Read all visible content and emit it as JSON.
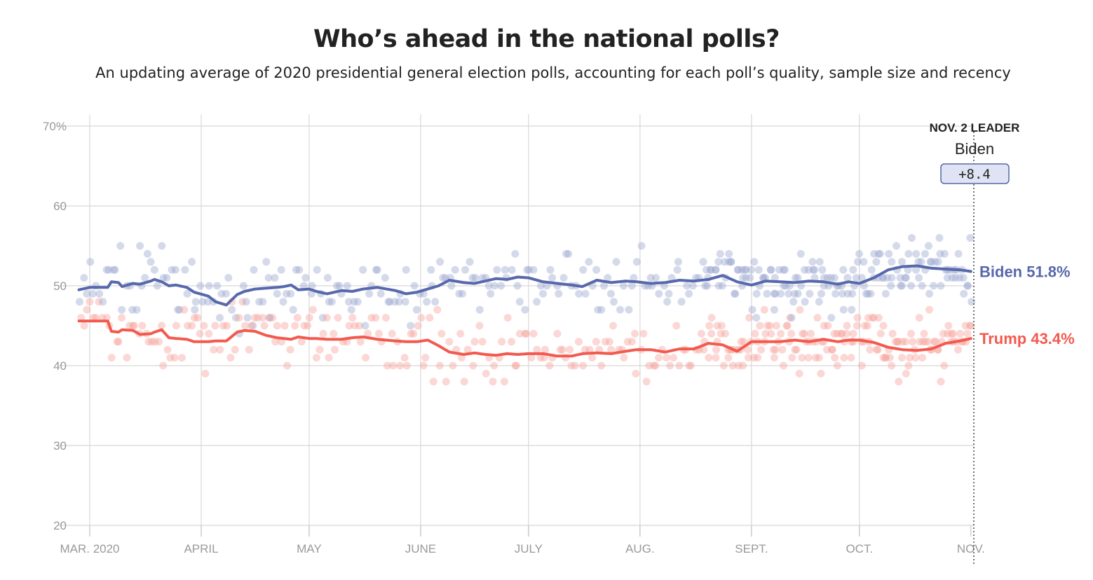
{
  "title": "Who’s ahead in the national polls?",
  "subtitle": "An updating average of 2020 presidential general election polls, accounting for each poll’s quality, sample size and recency",
  "colors": {
    "biden": "#5768ac",
    "trump": "#f25a4f",
    "biden_dot": "#9ba6cf",
    "trump_dot": "#f6a29b",
    "grid": "#d8d8d8",
    "axis_text": "#999999"
  },
  "leader": {
    "title": "NOV. 2 LEADER",
    "name": "Biden",
    "margin": "+8.4"
  },
  "chart_data": {
    "type": "line",
    "x_unit": "days since Mar. 1, 2020",
    "xlim": [
      -4,
      252
    ],
    "ylim": [
      20,
      70
    ],
    "yticks": [
      {
        "value": 70,
        "label": "70%"
      },
      {
        "value": 60,
        "label": "60"
      },
      {
        "value": 50,
        "label": "50"
      },
      {
        "value": 40,
        "label": "40"
      },
      {
        "value": 30,
        "label": "30"
      },
      {
        "value": 20,
        "label": "20"
      }
    ],
    "xticks": [
      {
        "value": 0,
        "label": "MAR. 2020"
      },
      {
        "value": 31,
        "label": "APRIL"
      },
      {
        "value": 61,
        "label": "MAY"
      },
      {
        "value": 92,
        "label": "JUNE"
      },
      {
        "value": 122,
        "label": "JULY"
      },
      {
        "value": 153,
        "label": "AUG."
      },
      {
        "value": 184,
        "label": "SEPT."
      },
      {
        "value": 214,
        "label": "OCT."
      },
      {
        "value": 245,
        "label": "NOV."
      }
    ],
    "series": [
      {
        "name": "Biden",
        "end_label": "Biden 51.8%",
        "x": [
          -3,
          0,
          5,
          6,
          8,
          9,
          12,
          14,
          17,
          18,
          20,
          22,
          24,
          27,
          29,
          33,
          35,
          38,
          41,
          43,
          46,
          49,
          52,
          54,
          56,
          58,
          61,
          63,
          66,
          70,
          73,
          76,
          80,
          85,
          88,
          91,
          94,
          97,
          100,
          104,
          107,
          110,
          113,
          116,
          119,
          122,
          126,
          130,
          134,
          137,
          141,
          145,
          149,
          152,
          156,
          160,
          164,
          168,
          172,
          176,
          180,
          184,
          188,
          192,
          196,
          200,
          204,
          208,
          211,
          214,
          218,
          222,
          226,
          230,
          234,
          238,
          242,
          245
        ],
        "values": [
          49.5,
          49.8,
          49.8,
          50.5,
          50.4,
          49.9,
          50.3,
          50.2,
          50.6,
          50.8,
          50.5,
          50.0,
          50.1,
          49.8,
          49.2,
          48.7,
          48.0,
          47.6,
          48.9,
          49.3,
          49.6,
          49.7,
          49.8,
          49.9,
          50.1,
          49.5,
          49.6,
          49.3,
          49.0,
          49.4,
          49.3,
          49.6,
          49.8,
          49.4,
          49.0,
          49.2,
          49.6,
          50.0,
          50.7,
          50.4,
          50.3,
          50.6,
          50.9,
          50.8,
          51.1,
          51.0,
          50.5,
          50.3,
          50.1,
          49.9,
          50.7,
          50.4,
          50.6,
          50.5,
          50.3,
          50.4,
          50.7,
          50.6,
          50.8,
          51.3,
          50.5,
          50.1,
          50.6,
          50.5,
          50.4,
          50.6,
          50.5,
          50.2,
          50.5,
          50.3,
          51.0,
          52.0,
          52.4,
          52.5,
          52.2,
          52.1,
          52.0,
          51.8
        ]
      },
      {
        "name": "Trump",
        "end_label": "Trump 43.4%",
        "x": [
          -3,
          0,
          5,
          6,
          8,
          9,
          12,
          14,
          17,
          18,
          20,
          22,
          24,
          27,
          29,
          33,
          35,
          38,
          41,
          43,
          46,
          49,
          52,
          54,
          56,
          58,
          61,
          63,
          66,
          70,
          73,
          76,
          80,
          85,
          88,
          91,
          94,
          97,
          100,
          104,
          107,
          110,
          113,
          116,
          119,
          122,
          126,
          130,
          134,
          137,
          141,
          145,
          149,
          152,
          156,
          160,
          164,
          168,
          172,
          176,
          180,
          184,
          188,
          192,
          196,
          200,
          204,
          208,
          211,
          214,
          218,
          222,
          226,
          230,
          234,
          238,
          242,
          245
        ],
        "values": [
          45.6,
          45.6,
          45.6,
          44.3,
          44.2,
          44.5,
          44.4,
          43.9,
          44.0,
          44.2,
          44.5,
          43.5,
          43.4,
          43.3,
          43.0,
          43.0,
          43.1,
          43.1,
          44.2,
          44.4,
          44.3,
          43.8,
          43.5,
          43.4,
          43.3,
          43.6,
          43.4,
          43.4,
          43.3,
          43.3,
          43.5,
          43.6,
          43.3,
          43.1,
          43.0,
          43.0,
          43.2,
          42.5,
          41.7,
          41.4,
          41.6,
          41.4,
          41.3,
          41.5,
          41.4,
          41.5,
          41.5,
          41.2,
          41.2,
          41.5,
          41.6,
          41.5,
          41.8,
          42.0,
          42.0,
          41.7,
          42.1,
          42.1,
          42.8,
          42.6,
          41.8,
          43.0,
          43.0,
          43.0,
          43.2,
          43.0,
          43.3,
          43.0,
          43.2,
          43.2,
          42.9,
          42.3,
          42.0,
          41.9,
          42.1,
          42.8,
          43.1,
          43.4
        ]
      }
    ]
  }
}
